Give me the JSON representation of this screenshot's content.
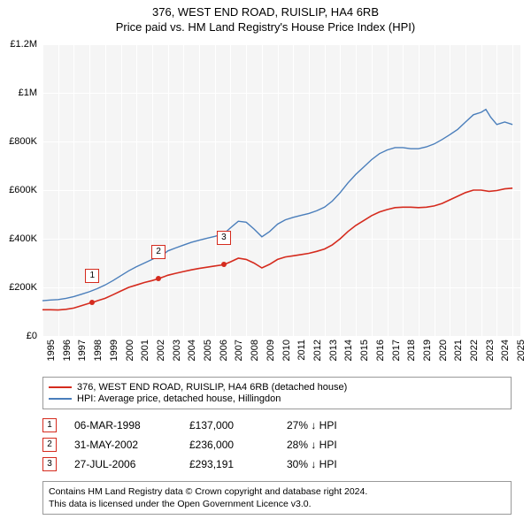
{
  "title": "376, WEST END ROAD, RUISLIP, HA4 6RB",
  "subtitle": "Price paid vs. HM Land Registry's House Price Index (HPI)",
  "chart": {
    "type": "line",
    "background_color": "#f5f5f5",
    "grid_color": "#ffffff",
    "xlim": [
      1995,
      2025.5
    ],
    "ylim": [
      0,
      1200000
    ],
    "ytick_step": 200000,
    "yticks": [
      {
        "v": 0,
        "label": "£0"
      },
      {
        "v": 200000,
        "label": "£200K"
      },
      {
        "v": 400000,
        "label": "£400K"
      },
      {
        "v": 600000,
        "label": "£600K"
      },
      {
        "v": 800000,
        "label": "£800K"
      },
      {
        "v": 1000000,
        "label": "£1M"
      },
      {
        "v": 1200000,
        "label": "£1.2M"
      }
    ],
    "xticks": [
      1995,
      1996,
      1997,
      1998,
      1999,
      2000,
      2001,
      2002,
      2003,
      2004,
      2005,
      2006,
      2007,
      2008,
      2009,
      2010,
      2011,
      2012,
      2013,
      2014,
      2015,
      2016,
      2017,
      2018,
      2019,
      2020,
      2021,
      2022,
      2023,
      2024,
      2025
    ],
    "series": [
      {
        "name": "376, WEST END ROAD, RUISLIP, HA4 6RB (detached house)",
        "color": "#d52b1e",
        "line_width": 1.6,
        "points": [
          [
            1995.0,
            108000
          ],
          [
            1995.5,
            108000
          ],
          [
            1996.0,
            107000
          ],
          [
            1996.5,
            110000
          ],
          [
            1997.0,
            115000
          ],
          [
            1997.5,
            125000
          ],
          [
            1998.0,
            135000
          ],
          [
            1998.18,
            137000
          ],
          [
            1998.5,
            145000
          ],
          [
            1999.0,
            155000
          ],
          [
            1999.5,
            170000
          ],
          [
            2000.0,
            185000
          ],
          [
            2000.5,
            200000
          ],
          [
            2001.0,
            210000
          ],
          [
            2001.5,
            220000
          ],
          [
            2002.0,
            228000
          ],
          [
            2002.41,
            236000
          ],
          [
            2002.8,
            245000
          ],
          [
            2003.0,
            250000
          ],
          [
            2003.5,
            258000
          ],
          [
            2004.0,
            265000
          ],
          [
            2004.5,
            272000
          ],
          [
            2005.0,
            278000
          ],
          [
            2005.5,
            283000
          ],
          [
            2006.0,
            288000
          ],
          [
            2006.57,
            293191
          ],
          [
            2007.0,
            305000
          ],
          [
            2007.5,
            320000
          ],
          [
            2008.0,
            315000
          ],
          [
            2008.5,
            300000
          ],
          [
            2009.0,
            280000
          ],
          [
            2009.5,
            295000
          ],
          [
            2010.0,
            315000
          ],
          [
            2010.5,
            325000
          ],
          [
            2011.0,
            330000
          ],
          [
            2011.5,
            335000
          ],
          [
            2012.0,
            340000
          ],
          [
            2012.5,
            348000
          ],
          [
            2013.0,
            358000
          ],
          [
            2013.5,
            375000
          ],
          [
            2014.0,
            400000
          ],
          [
            2014.5,
            430000
          ],
          [
            2015.0,
            455000
          ],
          [
            2015.5,
            475000
          ],
          [
            2016.0,
            495000
          ],
          [
            2016.5,
            510000
          ],
          [
            2017.0,
            520000
          ],
          [
            2017.5,
            528000
          ],
          [
            2018.0,
            530000
          ],
          [
            2018.5,
            530000
          ],
          [
            2019.0,
            528000
          ],
          [
            2019.5,
            530000
          ],
          [
            2020.0,
            535000
          ],
          [
            2020.5,
            545000
          ],
          [
            2021.0,
            560000
          ],
          [
            2021.5,
            575000
          ],
          [
            2022.0,
            590000
          ],
          [
            2022.5,
            600000
          ],
          [
            2023.0,
            600000
          ],
          [
            2023.5,
            595000
          ],
          [
            2024.0,
            598000
          ],
          [
            2024.5,
            605000
          ],
          [
            2025.0,
            608000
          ]
        ]
      },
      {
        "name": "HPI: Average price, detached house, Hillingdon",
        "color": "#4a7ebb",
        "line_width": 1.4,
        "points": [
          [
            1995.0,
            145000
          ],
          [
            1995.5,
            148000
          ],
          [
            1996.0,
            150000
          ],
          [
            1996.5,
            155000
          ],
          [
            1997.0,
            162000
          ],
          [
            1997.5,
            172000
          ],
          [
            1998.0,
            182000
          ],
          [
            1998.18,
            187000
          ],
          [
            1998.5,
            195000
          ],
          [
            1999.0,
            210000
          ],
          [
            1999.5,
            228000
          ],
          [
            2000.0,
            248000
          ],
          [
            2000.5,
            268000
          ],
          [
            2001.0,
            285000
          ],
          [
            2001.5,
            300000
          ],
          [
            2002.0,
            315000
          ],
          [
            2002.41,
            328000
          ],
          [
            2002.8,
            340000
          ],
          [
            2003.0,
            350000
          ],
          [
            2003.5,
            362000
          ],
          [
            2004.0,
            374000
          ],
          [
            2004.5,
            385000
          ],
          [
            2005.0,
            394000
          ],
          [
            2005.5,
            402000
          ],
          [
            2006.0,
            410000
          ],
          [
            2006.57,
            420000
          ],
          [
            2007.0,
            445000
          ],
          [
            2007.5,
            472000
          ],
          [
            2008.0,
            468000
          ],
          [
            2008.5,
            440000
          ],
          [
            2009.0,
            408000
          ],
          [
            2009.5,
            430000
          ],
          [
            2010.0,
            460000
          ],
          [
            2010.5,
            478000
          ],
          [
            2011.0,
            488000
          ],
          [
            2011.5,
            496000
          ],
          [
            2012.0,
            504000
          ],
          [
            2012.5,
            515000
          ],
          [
            2013.0,
            530000
          ],
          [
            2013.5,
            555000
          ],
          [
            2014.0,
            590000
          ],
          [
            2014.5,
            630000
          ],
          [
            2015.0,
            665000
          ],
          [
            2015.5,
            695000
          ],
          [
            2016.0,
            725000
          ],
          [
            2016.5,
            750000
          ],
          [
            2017.0,
            765000
          ],
          [
            2017.5,
            775000
          ],
          [
            2018.0,
            775000
          ],
          [
            2018.5,
            770000
          ],
          [
            2019.0,
            770000
          ],
          [
            2019.5,
            778000
          ],
          [
            2020.0,
            790000
          ],
          [
            2020.5,
            808000
          ],
          [
            2021.0,
            828000
          ],
          [
            2021.5,
            850000
          ],
          [
            2022.0,
            880000
          ],
          [
            2022.5,
            910000
          ],
          [
            2023.0,
            920000
          ],
          [
            2023.3,
            932000
          ],
          [
            2023.6,
            900000
          ],
          [
            2024.0,
            870000
          ],
          [
            2024.5,
            880000
          ],
          [
            2025.0,
            870000
          ]
        ]
      }
    ],
    "sale_markers": [
      {
        "label": "1",
        "x": 1998.18,
        "y": 137000,
        "box_y_offset": -30
      },
      {
        "label": "2",
        "x": 2002.41,
        "y": 236000,
        "box_y_offset": -30
      },
      {
        "label": "3",
        "x": 2006.57,
        "y": 293191,
        "box_y_offset": -30
      }
    ]
  },
  "legend": {
    "items": [
      {
        "color": "#d52b1e",
        "label": "376, WEST END ROAD, RUISLIP, HA4 6RB (detached house)"
      },
      {
        "color": "#4a7ebb",
        "label": "HPI: Average price, detached house, Hillingdon"
      }
    ]
  },
  "sales": [
    {
      "num": "1",
      "date": "06-MAR-1998",
      "price": "£137,000",
      "diff": "27% ↓ HPI"
    },
    {
      "num": "2",
      "date": "31-MAY-2002",
      "price": "£236,000",
      "diff": "28% ↓ HPI"
    },
    {
      "num": "3",
      "date": "27-JUL-2006",
      "price": "£293,191",
      "diff": "30% ↓ HPI"
    }
  ],
  "footnote_line1": "Contains HM Land Registry data © Crown copyright and database right 2024.",
  "footnote_line2": "This data is licensed under the Open Government Licence v3.0."
}
